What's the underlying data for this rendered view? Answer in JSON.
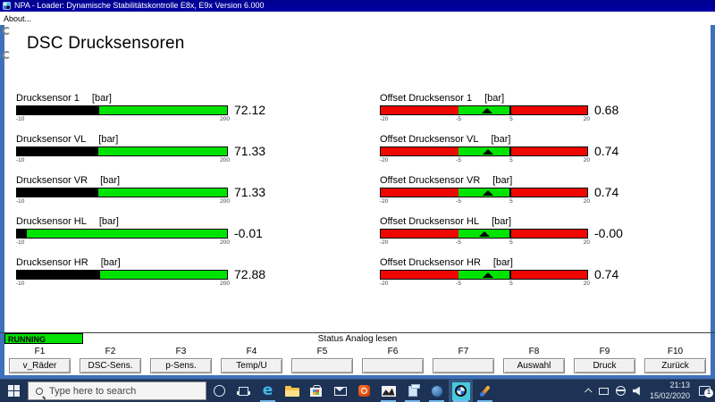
{
  "titlebar": {
    "title": "NPA - Loader: Dynamische Stabilitätskontrolle E8x, E9x Version 6.000"
  },
  "menubar": {
    "items": [
      "About..."
    ]
  },
  "page": {
    "heading": "DSC Drucksensoren"
  },
  "gauges": {
    "pressure": {
      "unit": "[bar]",
      "scale": {
        "min": -10,
        "max": 200,
        "min_label": "-10",
        "max_label": "200"
      },
      "bar_color": "#00e300",
      "fill_color": "#000000",
      "items": [
        {
          "label": "Drucksensor 1",
          "value": 72.12,
          "display": "72.12"
        },
        {
          "label": "Drucksensor VL",
          "value": 71.33,
          "display": "71.33"
        },
        {
          "label": "Drucksensor VR",
          "value": 71.33,
          "display": "71.33"
        },
        {
          "label": "Drucksensor HL",
          "value": -0.01,
          "display": "-0.01"
        },
        {
          "label": "Drucksensor HR",
          "value": 72.88,
          "display": "72.88"
        }
      ]
    },
    "offset": {
      "unit": "[bar]",
      "scale": {
        "min": -20,
        "max": 20,
        "green_zone": [
          -5,
          5
        ],
        "labels": [
          {
            "text": "-20",
            "pos": 0
          },
          {
            "text": "-5",
            "pos": 37.5
          },
          {
            "text": "5",
            "pos": 62.5
          },
          {
            "text": "20",
            "pos": 100
          }
        ]
      },
      "bar_color": "#ee0600",
      "zone_color": "#00e300",
      "items": [
        {
          "label": "Offset Drucksensor 1",
          "value": 0.68,
          "display": "0.68"
        },
        {
          "label": "Offset Drucksensor VL",
          "value": 0.74,
          "display": "0.74"
        },
        {
          "label": "Offset Drucksensor VR",
          "value": 0.74,
          "display": "0.74"
        },
        {
          "label": "Offset Drucksensor HL",
          "value": -0.0,
          "display": "-0.00"
        },
        {
          "label": "Offset Drucksensor HR",
          "value": 0.74,
          "display": "0.74"
        }
      ]
    }
  },
  "statusbar": {
    "running_label": "RUNNING",
    "running_color": "#00e300",
    "status_text": "Status Analog lesen"
  },
  "function_keys": [
    {
      "key": "F1",
      "label": "v_Räder"
    },
    {
      "key": "F2",
      "label": "DSC-Sens."
    },
    {
      "key": "F3",
      "label": "p-Sens."
    },
    {
      "key": "F4",
      "label": "Temp/U"
    },
    {
      "key": "F5",
      "label": ""
    },
    {
      "key": "F6",
      "label": ""
    },
    {
      "key": "F7",
      "label": ""
    },
    {
      "key": "F8",
      "label": "Auswahl"
    },
    {
      "key": "F9",
      "label": "Druck"
    },
    {
      "key": "F10",
      "label": "Zurück"
    }
  ],
  "taskbar": {
    "search_placeholder": "Type here to search",
    "icons": [
      "start",
      "cortana",
      "task-view",
      "edge",
      "file-explorer",
      "store",
      "mail",
      "office",
      "chart-app",
      "docs-app",
      "globe-app",
      "bmw-inpa",
      "paint-app"
    ],
    "tray_icons": [
      "chevron-up",
      "display",
      "network",
      "volume"
    ],
    "clock": {
      "time": "21:13",
      "date": "15/02/2020"
    },
    "notification_count": "1"
  }
}
